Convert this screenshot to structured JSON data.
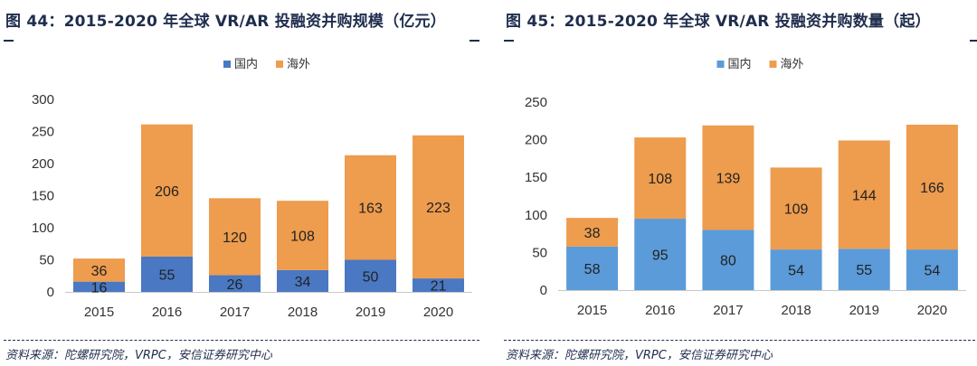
{
  "panels": [
    {
      "title": "图 44：2015-2020 年全球 VR/AR 投融资并购规模（亿元）",
      "source": "资料来源：陀螺研究院，VRPC，安信证券研究中心",
      "chart_data": {
        "type": "bar",
        "stacked": true,
        "categories": [
          "2015",
          "2016",
          "2017",
          "2018",
          "2019",
          "2020"
        ],
        "series": [
          {
            "name": "国内",
            "values": [
              16,
              55,
              26,
              34,
              50,
              21
            ],
            "color": "#4a78c2"
          },
          {
            "name": "海外",
            "values": [
              36,
              206,
              120,
              108,
              163,
              223
            ],
            "color": "#ee9c4e"
          }
        ],
        "ylim": [
          0,
          300
        ],
        "yticks": [
          0,
          50,
          100,
          150,
          200,
          250,
          300
        ],
        "grid": false,
        "legend": "top-center",
        "data_labels": true
      }
    },
    {
      "title": "图 45：2015-2020 年全球 VR/AR 投融资并购数量（起）",
      "source": "资料来源：陀螺研究院，VRPC，安信证券研究中心",
      "chart_data": {
        "type": "bar",
        "stacked": true,
        "categories": [
          "2015",
          "2016",
          "2017",
          "2018",
          "2019",
          "2020"
        ],
        "series": [
          {
            "name": "国内",
            "values": [
              58,
              95,
              80,
              54,
              55,
              54
            ],
            "color": "#5b9bd9"
          },
          {
            "name": "海外",
            "values": [
              38,
              108,
              139,
              109,
              144,
              166
            ],
            "color": "#ee9c4e"
          }
        ],
        "ylim": [
          0,
          250
        ],
        "yticks": [
          0,
          50,
          100,
          150,
          200,
          250
        ],
        "grid": false,
        "legend": "top-center",
        "data_labels": true
      }
    }
  ]
}
